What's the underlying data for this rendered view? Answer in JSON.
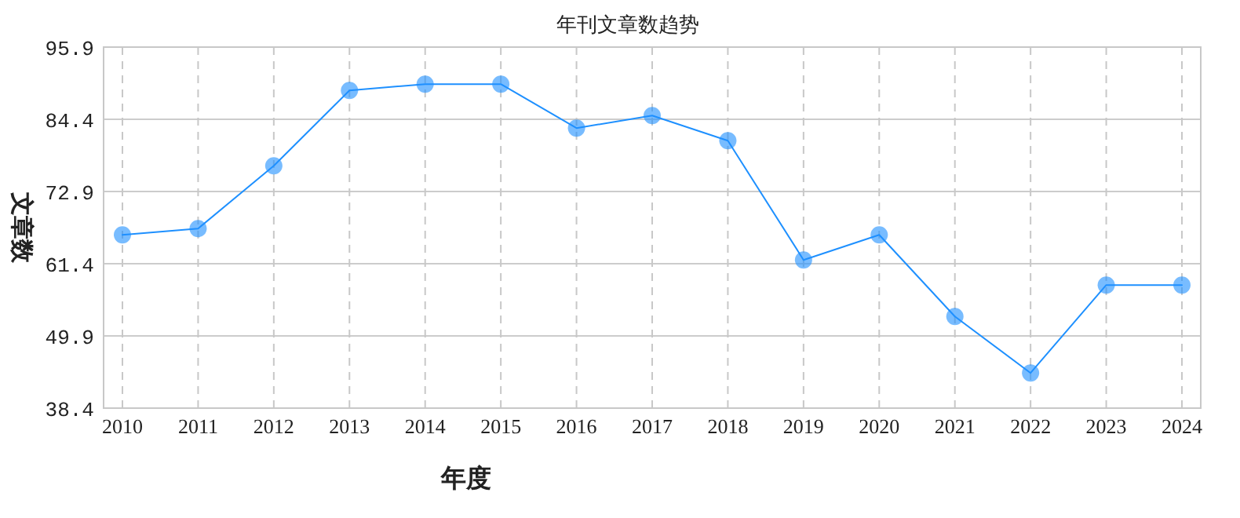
{
  "chart_data": {
    "type": "line",
    "title": "年刊文章数趋势",
    "xlabel": "年度",
    "ylabel": "文章数",
    "categories": [
      "2010",
      "2011",
      "2012",
      "2013",
      "2014",
      "2015",
      "2016",
      "2017",
      "2018",
      "2019",
      "2020",
      "2021",
      "2022",
      "2023",
      "2024"
    ],
    "series": [
      {
        "color": "#1e90ff",
        "values": [
          66,
          67,
          77,
          89,
          90,
          90,
          83,
          85,
          81,
          62,
          66,
          53,
          44,
          58,
          58
        ]
      }
    ],
    "ylim": [
      38.4,
      95.9
    ],
    "yticks": [
      38.4,
      49.9,
      61.4,
      72.9,
      84.4,
      95.9
    ],
    "grid": true,
    "marker": "circle",
    "line_style": "solid"
  }
}
